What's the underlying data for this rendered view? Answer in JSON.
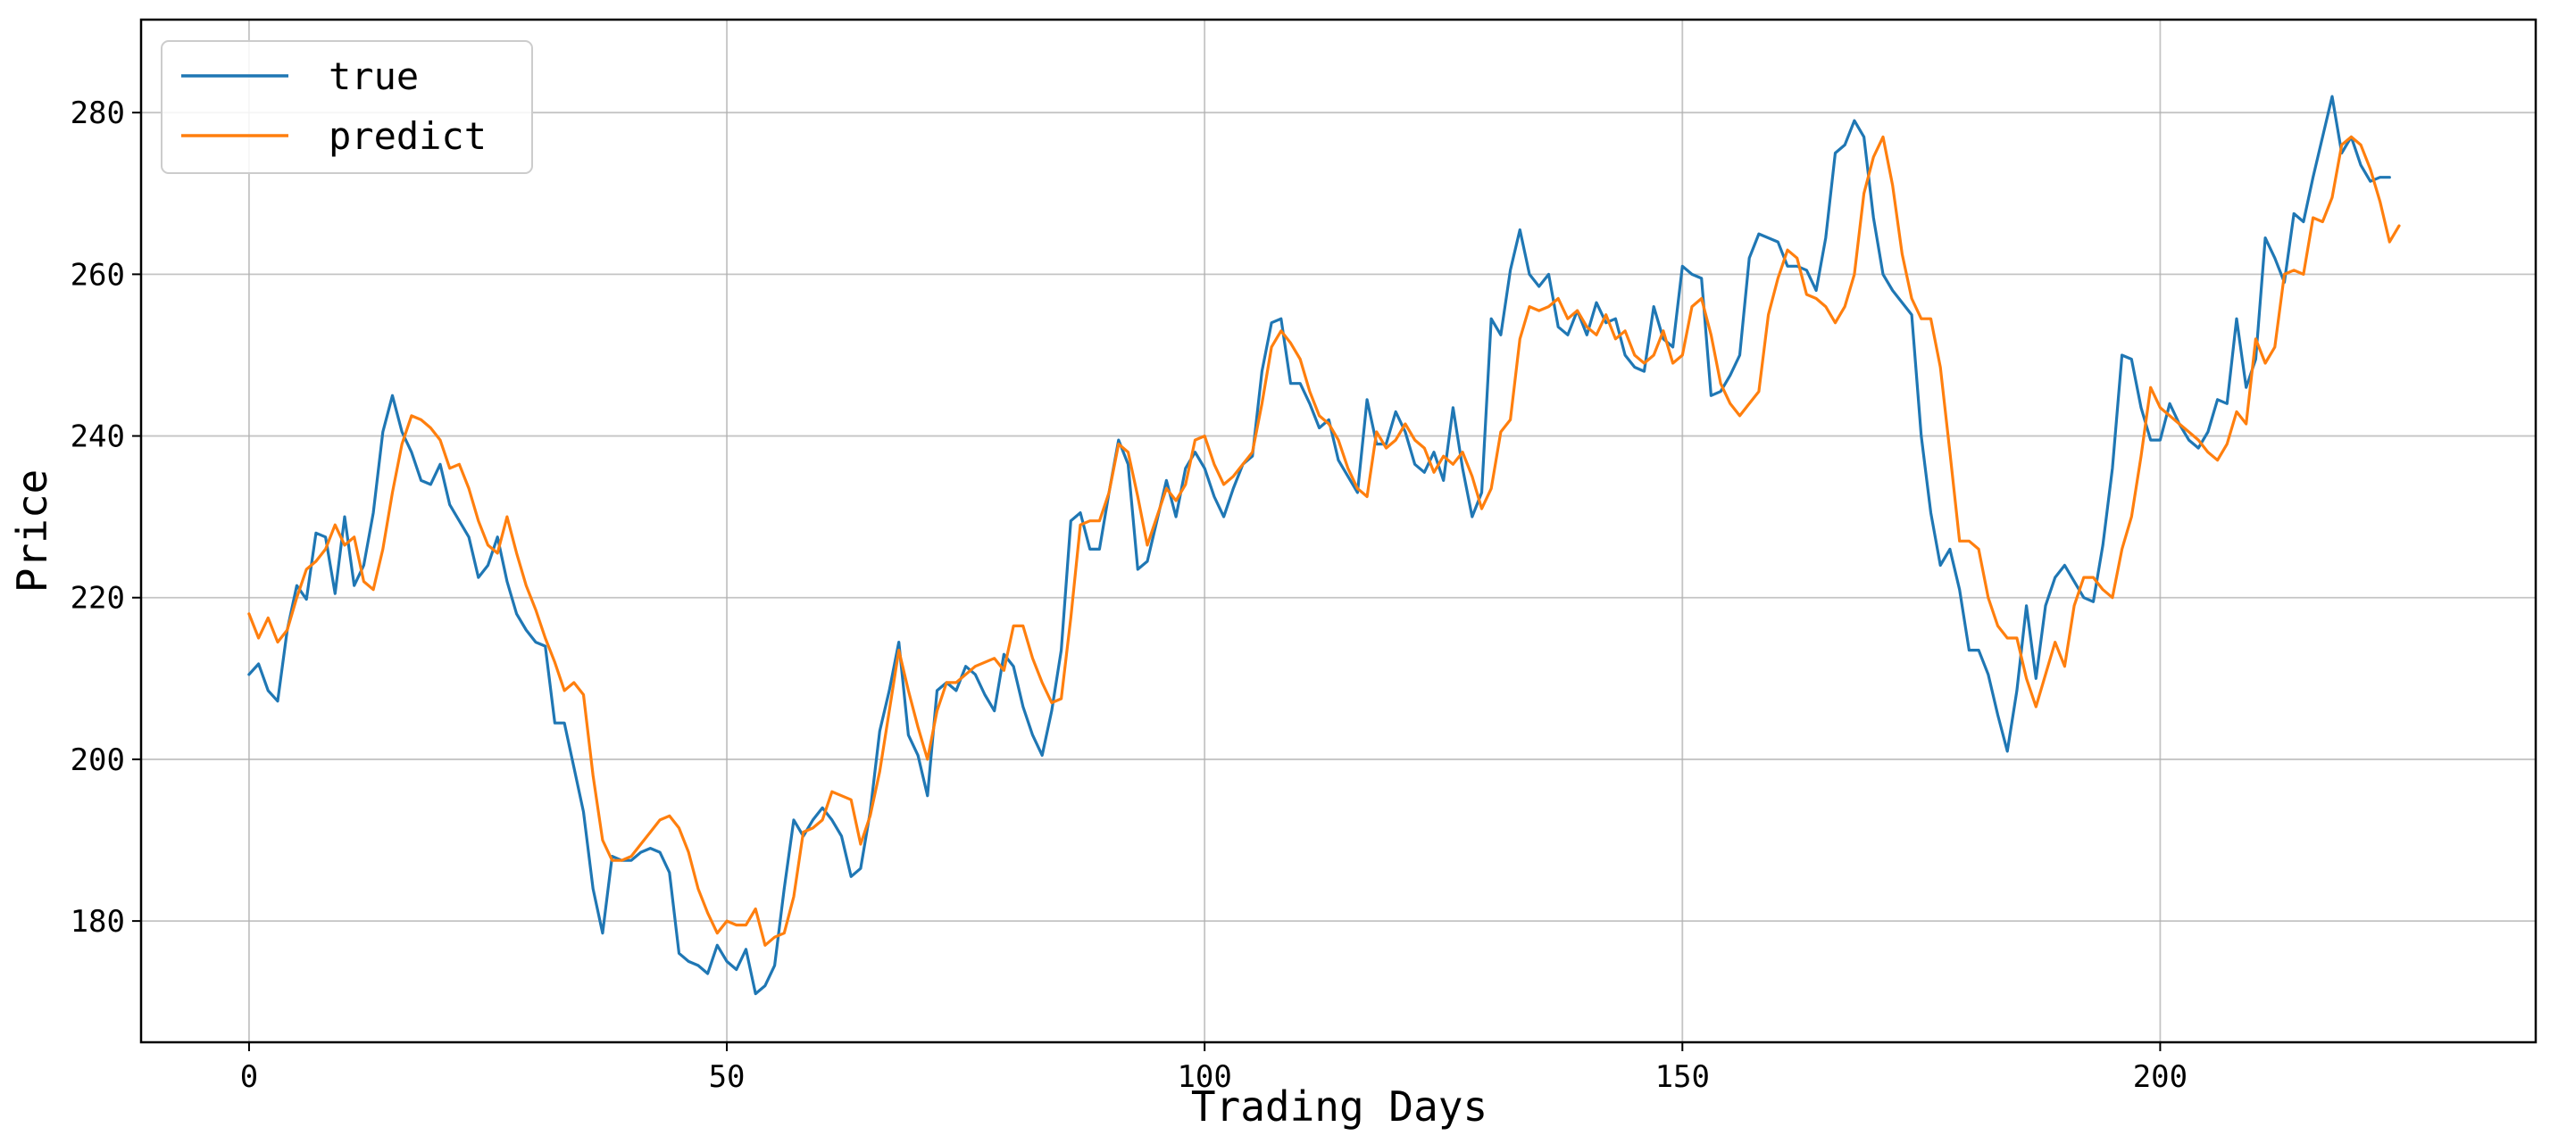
{
  "chart_data": {
    "type": "line",
    "title": "",
    "xlabel": "Trading Days",
    "ylabel": "Price",
    "xlim": [
      -11.3,
      239.3
    ],
    "ylim": [
      165,
      291.5
    ],
    "xticks": [
      0,
      50,
      100,
      150,
      200
    ],
    "yticks": [
      180,
      200,
      220,
      240,
      260,
      280
    ],
    "grid": true,
    "legend_position": "top-left",
    "series": [
      {
        "name": "true",
        "color": "#1f77b4",
        "values": [
          210.5,
          211.8,
          208.5,
          207.2,
          216.0,
          221.5,
          219.8,
          228.0,
          227.5,
          220.5,
          230.0,
          221.5,
          224.0,
          230.5,
          240.5,
          245.0,
          240.5,
          238.0,
          234.5,
          234.0,
          236.5,
          231.5,
          229.5,
          227.5,
          222.5,
          224.0,
          227.5,
          222.0,
          218.0,
          216.0,
          214.5,
          214.0,
          204.5,
          204.5,
          199.0,
          193.5,
          184.0,
          178.5,
          188.0,
          187.5,
          187.5,
          188.5,
          189.0,
          188.5,
          186.0,
          176.0,
          175.0,
          174.5,
          173.5,
          177.0,
          175.0,
          174.0,
          176.5,
          171.0,
          172.0,
          174.5,
          184.0,
          192.5,
          190.5,
          192.5,
          194.0,
          192.5,
          190.5,
          185.5,
          186.5,
          193.5,
          203.5,
          208.5,
          214.5,
          203.0,
          200.5,
          195.5,
          208.5,
          209.5,
          208.5,
          211.5,
          210.5,
          208.0,
          206.0,
          213.0,
          211.5,
          206.5,
          203.0,
          200.5,
          206.0,
          213.5,
          229.5,
          230.5,
          226.0,
          226.0,
          233.0,
          239.5,
          236.5,
          223.5,
          224.5,
          229.5,
          234.5,
          230.0,
          236.0,
          238.0,
          236.0,
          232.5,
          230.0,
          233.5,
          236.5,
          237.5,
          248.0,
          254.0,
          254.5,
          246.5,
          246.5,
          244.0,
          241.0,
          242.0,
          237.0,
          235.0,
          233.0,
          244.5,
          239.0,
          239.0,
          243.0,
          240.5,
          236.5,
          235.5,
          238.0,
          234.5,
          243.5,
          236.0,
          230.0,
          233.0,
          254.5,
          252.5,
          260.5,
          265.5,
          260.0,
          258.5,
          260.0,
          253.5,
          252.5,
          255.5,
          252.5,
          256.5,
          254.0,
          254.5,
          250.0,
          248.5,
          248.0,
          256.0,
          252.0,
          251.0,
          261.0,
          260.0,
          259.5,
          245.0,
          245.5,
          247.5,
          250.0,
          262.0,
          265.0,
          264.5,
          264.0,
          261.0,
          261.0,
          260.5,
          258.0,
          264.5,
          275.0,
          276.0,
          279.0,
          277.0,
          267.0,
          260.0,
          258.0,
          256.5,
          255.0,
          240.0,
          230.5,
          224.0,
          226.0,
          221.0,
          213.5,
          213.5,
          210.5,
          205.5,
          201.0,
          208.5,
          219.0,
          210.0,
          219.0,
          222.5,
          224.0,
          222.0,
          220.0,
          219.5,
          226.5,
          236.0,
          250.0,
          249.5,
          243.5,
          239.5,
          239.5,
          244.0,
          241.5,
          239.5,
          238.5,
          240.5,
          244.5,
          244.0,
          254.5,
          246.0,
          249.5,
          264.5,
          262.0,
          259.0,
          267.5,
          266.5,
          272.0,
          277.0,
          282.0,
          275.0,
          277.0,
          273.5,
          271.5,
          272.0,
          272.0
        ]
      },
      {
        "name": "predict",
        "color": "#ff7f0e",
        "values": [
          218.0,
          215.0,
          217.5,
          214.5,
          216.0,
          220.0,
          223.5,
          224.5,
          226.0,
          229.0,
          226.5,
          227.5,
          222.0,
          221.0,
          226.0,
          233.0,
          239.0,
          242.5,
          242.0,
          241.0,
          239.5,
          236.0,
          236.5,
          233.5,
          229.5,
          226.5,
          225.5,
          230.0,
          225.5,
          221.5,
          218.5,
          215.0,
          212.0,
          208.5,
          209.5,
          208.0,
          198.0,
          190.0,
          187.5,
          187.5,
          188.0,
          189.5,
          191.0,
          192.5,
          193.0,
          191.5,
          188.5,
          184.0,
          181.0,
          178.5,
          180.0,
          179.5,
          179.5,
          181.5,
          177.0,
          178.0,
          178.5,
          183.0,
          191.0,
          191.5,
          192.5,
          196.0,
          195.5,
          195.0,
          189.5,
          193.0,
          198.5,
          206.0,
          213.5,
          208.5,
          204.0,
          200.0,
          206.0,
          209.5,
          209.5,
          210.5,
          211.5,
          212.0,
          212.5,
          211.0,
          216.5,
          216.5,
          212.5,
          209.5,
          207.0,
          207.5,
          217.5,
          229.0,
          229.5,
          229.5,
          233.0,
          239.0,
          238.0,
          232.5,
          226.5,
          230.0,
          233.5,
          232.0,
          234.0,
          239.5,
          240.0,
          236.5,
          234.0,
          235.0,
          236.5,
          238.0,
          244.0,
          251.0,
          253.0,
          251.5,
          249.5,
          245.5,
          242.5,
          241.5,
          239.5,
          236.0,
          233.5,
          232.5,
          240.5,
          238.5,
          239.5,
          241.5,
          239.5,
          238.5,
          235.5,
          237.5,
          236.5,
          238.0,
          235.0,
          231.0,
          233.5,
          240.5,
          242.0,
          252.0,
          256.0,
          255.5,
          256.0,
          257.0,
          254.5,
          255.5,
          253.5,
          252.5,
          255.0,
          252.0,
          253.0,
          250.0,
          249.0,
          250.0,
          253.0,
          249.0,
          250.0,
          256.0,
          257.0,
          252.5,
          246.5,
          244.0,
          242.5,
          244.0,
          245.5,
          255.0,
          259.5,
          263.0,
          262.0,
          257.5,
          257.0,
          256.0,
          254.0,
          256.0,
          260.0,
          270.0,
          274.5,
          277.0,
          271.0,
          262.5,
          257.0,
          254.5,
          254.5,
          248.5,
          238.0,
          227.0,
          227.0,
          226.0,
          220.0,
          216.5,
          215.0,
          215.0,
          210.0,
          206.5,
          210.5,
          214.5,
          211.5,
          219.0,
          222.5,
          222.5,
          221.0,
          220.0,
          226.0,
          230.0,
          237.5,
          246.0,
          243.5,
          242.5,
          241.5,
          240.5,
          239.5,
          238.0,
          237.0,
          239.0,
          243.0,
          241.5,
          252.0,
          249.0,
          251.0,
          260.0,
          260.5,
          260.0,
          267.0,
          266.5,
          269.5,
          276.0,
          277.0,
          276.0,
          273.0,
          269.0,
          264.0,
          266.0
        ]
      }
    ]
  }
}
